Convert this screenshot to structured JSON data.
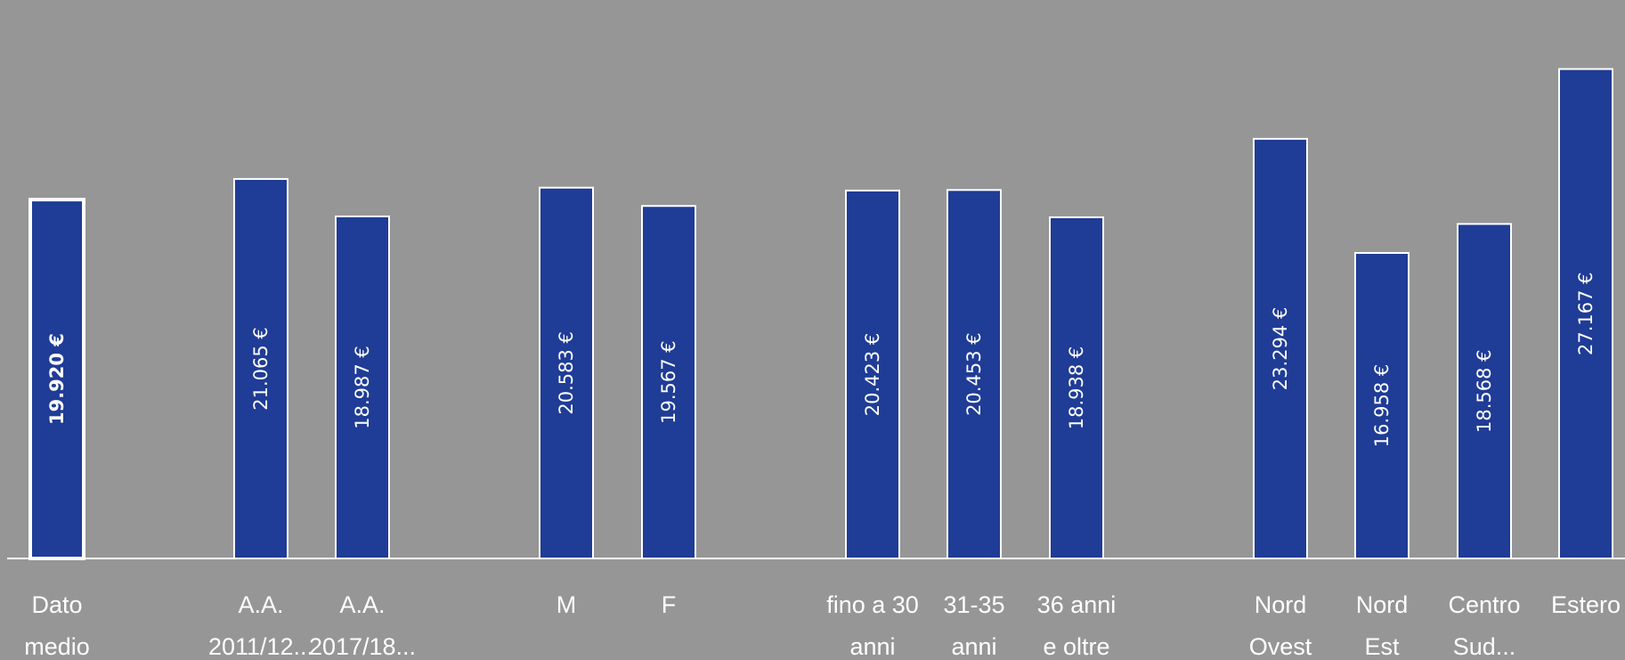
{
  "chart_data": {
    "type": "bar",
    "bar_color": "#1f3c96",
    "background": "#969696",
    "ylim": [
      0,
      31000
    ],
    "grid": false,
    "legend": "none",
    "bars": [
      {
        "label": [
          "Dato",
          "medio"
        ],
        "value": 19920,
        "text": "19.920 €",
        "highlight": true
      },
      {
        "label": [
          "A.A.",
          "2011/12..."
        ],
        "value": 21065,
        "text": "21.065 €"
      },
      {
        "label": [
          "A.A.",
          "2017/18..."
        ],
        "value": 18987,
        "text": "18.987 €"
      },
      {
        "label": [
          "M"
        ],
        "value": 20583,
        "text": "20.583 €"
      },
      {
        "label": [
          "F"
        ],
        "value": 19567,
        "text": "19.567 €"
      },
      {
        "label": [
          "fino a 30",
          "anni"
        ],
        "value": 20423,
        "text": "20.423 €"
      },
      {
        "label": [
          "31-35",
          "anni"
        ],
        "value": 20453,
        "text": "20.453 €"
      },
      {
        "label": [
          "36 anni",
          "e oltre"
        ],
        "value": 18938,
        "text": "18.938 €"
      },
      {
        "label": [
          "Nord",
          "Ovest"
        ],
        "value": 23294,
        "text": "23.294 €"
      },
      {
        "label": [
          "Nord",
          "Est"
        ],
        "value": 16958,
        "text": "16.958 €"
      },
      {
        "label": [
          "Centro",
          "Sud..."
        ],
        "value": 18568,
        "text": "18.568 €"
      },
      {
        "label": [
          "Estero"
        ],
        "value": 27167,
        "text": "27.167 €"
      }
    ]
  }
}
